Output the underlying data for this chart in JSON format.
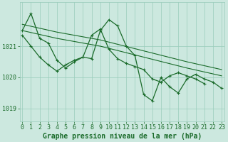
{
  "background_color": "#cce8df",
  "grid_color": "#99ccbb",
  "line_color": "#1a6b2a",
  "xlabel": "Graphe pression niveau de la mer (hPa)",
  "xlabel_fontsize": 7,
  "tick_fontsize": 6,
  "ylim": [
    1018.6,
    1022.4
  ],
  "xlim": [
    -0.3,
    23.3
  ],
  "yticks": [
    1019,
    1020,
    1021
  ],
  "xticks": [
    0,
    1,
    2,
    3,
    4,
    5,
    6,
    7,
    8,
    9,
    10,
    11,
    12,
    13,
    14,
    15,
    16,
    17,
    18,
    19,
    20,
    21,
    22,
    23
  ],
  "series": [
    {
      "x": [
        0,
        4,
        9,
        14,
        19,
        23
      ],
      "y": [
        1021.7,
        1021.45,
        1021.2,
        1020.85,
        1020.5,
        1020.25
      ],
      "has_markers": false,
      "lw": 0.8
    },
    {
      "x": [
        0,
        4,
        9,
        14,
        19,
        23
      ],
      "y": [
        1021.5,
        1021.25,
        1021.0,
        1020.65,
        1020.3,
        1020.05
      ],
      "has_markers": false,
      "lw": 0.8
    },
    {
      "x": [
        0,
        1,
        2,
        3,
        4,
        5,
        6,
        7,
        8,
        9,
        10,
        11,
        12,
        13,
        14,
        15,
        16,
        17,
        18,
        19,
        20,
        21,
        22,
        23
      ],
      "y": [
        1021.5,
        1022.05,
        1021.25,
        1021.1,
        1020.55,
        1020.3,
        1020.5,
        1020.65,
        1020.6,
        1021.5,
        1021.85,
        1021.65,
        1021.0,
        1020.7,
        1019.45,
        1019.25,
        1020.0,
        1019.7,
        1019.5,
        1019.95,
        1020.1,
        1019.95,
        1019.85,
        1019.65
      ],
      "has_markers": true,
      "lw": 0.9
    },
    {
      "x": [
        0,
        1,
        2,
        3,
        4,
        5,
        6,
        7,
        8,
        9,
        10,
        11,
        12,
        13,
        14,
        15,
        16,
        17,
        18,
        19,
        20,
        21,
        22,
        23
      ],
      "y": [
        1021.35,
        1021.0,
        1020.65,
        1020.4,
        1020.2,
        1020.4,
        1020.55,
        1020.65,
        1021.35,
        1021.55,
        1020.9,
        1020.6,
        1020.45,
        1020.35,
        1020.25,
        1019.95,
        1019.85,
        1020.05,
        1020.15,
        1020.05,
        1019.95,
        1019.8,
        null,
        null
      ],
      "has_markers": true,
      "lw": 0.9
    }
  ]
}
